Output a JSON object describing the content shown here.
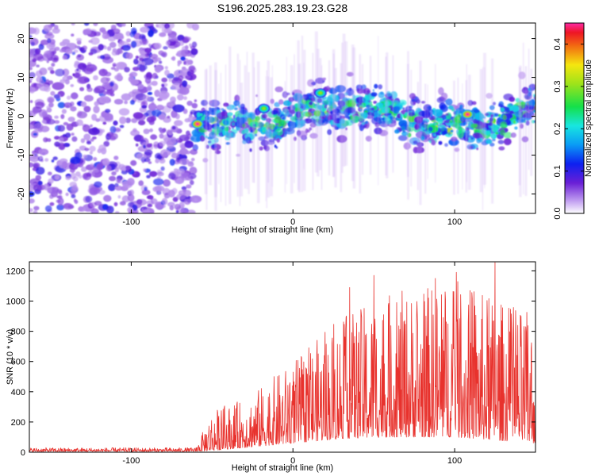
{
  "title": "S196.2025.283.19.23.G28",
  "chart_data": [
    {
      "type": "heatmap",
      "xlabel": "Height of straight line (km)",
      "ylabel": "Frequency (Hz)",
      "xlim": [
        -163,
        150
      ],
      "ylim": [
        -25,
        24
      ],
      "xticks": [
        -100,
        0,
        100
      ],
      "yticks": [
        -20,
        -10,
        0,
        10,
        20
      ],
      "description_values": {
        "noise_region_x": [
          -163,
          -60
        ],
        "signal_region_x": [
          -60,
          150
        ],
        "peak_points": [
          {
            "x": -59,
            "y": -2,
            "value": 0.45
          },
          {
            "x": -18,
            "y": 2,
            "value": 0.3
          },
          {
            "x": 17,
            "y": 6,
            "value": 0.3
          },
          {
            "x": 108,
            "y": 0.5,
            "value": 0.45
          }
        ]
      },
      "colorbar": {
        "label": "Normalized spectral amplitude",
        "range": [
          0.0,
          0.45
        ],
        "ticks": [
          "0.0",
          "0.1",
          "0.2",
          "0.3",
          "0.4"
        ]
      }
    },
    {
      "type": "line",
      "xlabel": "Height of straight line (km)",
      "ylabel": "SNR (10 * v/v)",
      "xlim": [
        -163,
        150
      ],
      "ylim": [
        0,
        1260
      ],
      "xticks": [
        -100,
        0,
        100
      ],
      "yticks": [
        0,
        200,
        400,
        600,
        800,
        1000,
        1200
      ],
      "series": [
        {
          "name": "SNR",
          "color": "#e8322d",
          "envelope": [
            {
              "x": -163,
              "low": 5,
              "high": 30
            },
            {
              "x": -60,
              "low": 5,
              "high": 30
            },
            {
              "x": -50,
              "low": 10,
              "high": 280
            },
            {
              "x": -30,
              "low": 30,
              "high": 350
            },
            {
              "x": 0,
              "low": 60,
              "high": 600
            },
            {
              "x": 30,
              "low": 90,
              "high": 900
            },
            {
              "x": 60,
              "low": 100,
              "high": 1050
            },
            {
              "x": 100,
              "low": 100,
              "high": 1150
            },
            {
              "x": 150,
              "low": 60,
              "high": 900
            }
          ],
          "peaks": [
            {
              "x": 35,
              "y": 1090
            },
            {
              "x": 50,
              "y": 1170
            },
            {
              "x": 88,
              "y": 1150
            },
            {
              "x": 101,
              "y": 1190
            },
            {
              "x": 125,
              "y": 1255
            },
            {
              "x": 144,
              "y": 830
            }
          ]
        }
      ]
    }
  ]
}
